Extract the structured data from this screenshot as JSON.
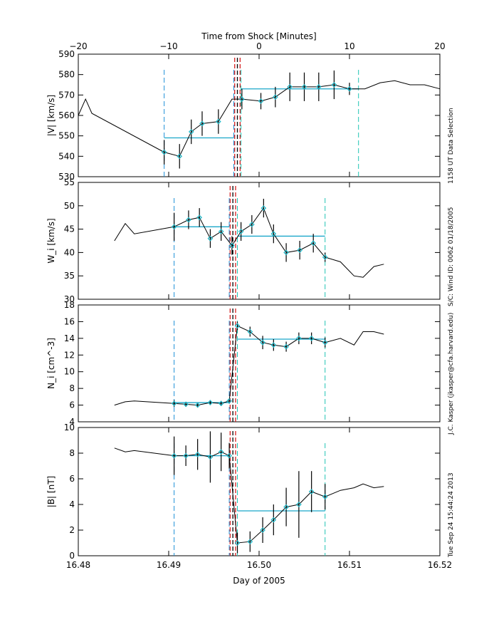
{
  "figure": {
    "top_axis_title": "Time from Shock [Minutes]",
    "bottom_axis_title": "Day of 2005",
    "side_text_1": "1158 UT Data Selection",
    "side_text_2": "S/C: Wind ID: 0062 01/18/2005",
    "side_text_3": "J.C. Kasper (jkasper@cfa.harvard.edu)",
    "side_text_4": "Tue Sep 24 15:44:24 2013"
  },
  "colors": {
    "line": "#000000",
    "points": "#1fb8c8",
    "fit": "#1aa7c9",
    "up_dash": "#1e90d8",
    "down_dash": "#1fc4b4",
    "shock": "#d62020"
  },
  "chart_data": {
    "type": "line",
    "x_axis": {
      "title": "Day of 2005",
      "range": [
        16.48,
        16.52
      ],
      "ticks": [
        16.48,
        16.49,
        16.5,
        16.51,
        16.52
      ],
      "tick_labels": [
        "16.48",
        "16.49",
        "16.50",
        "16.51",
        "16.52"
      ]
    },
    "top_axis": {
      "title": "Time from Shock [Minutes]",
      "range": [
        -20,
        20
      ],
      "ticks": [
        -20,
        -10,
        0,
        10,
        20
      ],
      "tick_labels": [
        "−20",
        "−10",
        "0",
        "10",
        "20"
      ]
    },
    "panels": [
      {
        "name": "speed",
        "ylabel": "|V| [km/s]",
        "ylim": [
          530,
          590
        ],
        "yticks": [
          530,
          540,
          550,
          560,
          570,
          580,
          590
        ],
        "series": {
          "x": [
            16.48,
            16.4808,
            16.4815,
            16.4895,
            16.4912,
            16.4925,
            16.4937,
            16.4955,
            16.497,
            16.4981,
            16.5002,
            16.5018,
            16.5034,
            16.505,
            16.5066,
            16.5083,
            16.51,
            16.5117,
            16.5134,
            16.515,
            16.5167,
            16.5183,
            16.52
          ],
          "y": [
            560,
            568,
            561,
            542,
            540,
            552,
            556,
            557,
            568,
            568,
            567,
            569,
            574,
            574,
            574,
            575,
            573,
            573,
            576,
            577,
            575,
            575,
            573
          ]
        },
        "points": {
          "x": [
            16.4895,
            16.4912,
            16.4925,
            16.4937,
            16.4955,
            16.4981,
            16.5002,
            16.5018,
            16.5034,
            16.505,
            16.5066,
            16.5083,
            16.51
          ],
          "y": [
            542,
            540,
            552,
            556,
            557,
            568,
            567,
            569,
            574,
            574,
            574,
            575,
            573
          ],
          "err": [
            6,
            6,
            6,
            6,
            6,
            5,
            4,
            5,
            7,
            7,
            7,
            7,
            3
          ]
        },
        "fits": [
          {
            "x": [
              16.4895,
              16.4972
            ],
            "y": 549
          },
          {
            "x": [
              16.498,
              16.511
            ],
            "y": 573
          }
        ],
        "upstream_dash": [
          16.4895,
          16.4972
        ],
        "downstream_dash": [
          16.498,
          16.511
        ],
        "shock_lines": [
          16.4973,
          16.4976,
          16.4979
        ]
      },
      {
        "name": "thermal",
        "ylabel": "W_i [km/s]",
        "ylim": [
          30,
          55
        ],
        "yticks": [
          30,
          35,
          40,
          45,
          50,
          55
        ],
        "series": {
          "x": [
            16.484,
            16.4852,
            16.4862,
            16.4906,
            16.4922,
            16.4934,
            16.4946,
            16.4958,
            16.497,
            16.498,
            16.4992,
            16.5005,
            16.5016,
            16.503,
            16.5045,
            16.506,
            16.5073,
            16.509,
            16.5105,
            16.5115,
            16.5127,
            16.5138
          ],
          "y": [
            42.5,
            46.2,
            44.0,
            45.5,
            47.0,
            47.5,
            43.0,
            44.5,
            41.5,
            44.5,
            46.0,
            49.5,
            44.0,
            40.0,
            40.5,
            42.0,
            39.0,
            38.0,
            35.0,
            34.7,
            37.0,
            37.5
          ]
        },
        "points": {
          "x": [
            16.4906,
            16.4922,
            16.4934,
            16.4946,
            16.4958,
            16.497,
            16.498,
            16.4992,
            16.5005,
            16.5016,
            16.503,
            16.5045,
            16.506,
            16.5073
          ],
          "y": [
            45.5,
            47.0,
            47.5,
            43.0,
            44.5,
            41.5,
            44.5,
            46.0,
            49.5,
            44.0,
            40.0,
            40.5,
            42.0,
            39.0
          ],
          "err": [
            3,
            2,
            2,
            2,
            2,
            2,
            2,
            2,
            2,
            2,
            2,
            2,
            2,
            1
          ]
        },
        "fits": [
          {
            "x": [
              16.4906,
              16.4967
            ],
            "y": 45.5
          },
          {
            "x": [
              16.4976,
              16.5073
            ],
            "y": 43.5
          }
        ],
        "upstream_dash": [
          16.4906,
          16.4967
        ],
        "downstream_dash": [
          16.4976,
          16.5073
        ],
        "shock_lines": [
          16.4968,
          16.4971,
          16.4974
        ]
      },
      {
        "name": "density",
        "ylabel": "N_i [cm^-3]",
        "ylim": [
          4,
          18
        ],
        "yticks": [
          4,
          6,
          8,
          10,
          12,
          14,
          16,
          18
        ],
        "series": {
          "x": [
            16.484,
            16.4852,
            16.4862,
            16.4906,
            16.4919,
            16.4932,
            16.4946,
            16.4958,
            16.4967,
            16.4976,
            16.499,
            16.5004,
            16.5016,
            16.503,
            16.5044,
            16.5058,
            16.5073,
            16.509,
            16.5105,
            16.5115,
            16.5127,
            16.5138
          ],
          "y": [
            6.0,
            6.4,
            6.5,
            6.2,
            6.1,
            6.0,
            6.3,
            6.2,
            6.5,
            15.5,
            14.8,
            13.5,
            13.2,
            13.0,
            14.0,
            14.0,
            13.5,
            14.0,
            13.2,
            14.8,
            14.8,
            14.5
          ]
        },
        "points": {
          "x": [
            16.4906,
            16.4919,
            16.4932,
            16.4946,
            16.4958,
            16.4967,
            16.4976,
            16.499,
            16.5004,
            16.5016,
            16.503,
            16.5044,
            16.5058,
            16.5073
          ],
          "y": [
            6.2,
            6.1,
            6.0,
            6.3,
            6.2,
            6.5,
            15.5,
            14.8,
            13.5,
            13.2,
            13.0,
            14.0,
            14.0,
            13.5
          ],
          "err": [
            0.4,
            0.3,
            0.3,
            0.3,
            0.3,
            0.3,
            0.5,
            0.6,
            0.8,
            0.7,
            0.6,
            0.7,
            0.7,
            0.6
          ]
        },
        "fits": [
          {
            "x": [
              16.4906,
              16.4967
            ],
            "y": 6.3
          },
          {
            "x": [
              16.4976,
              16.5073
            ],
            "y": 13.9
          }
        ],
        "upstream_dash": [
          16.4906,
          16.4967
        ],
        "downstream_dash": [
          16.4976,
          16.5073
        ],
        "shock_lines": [
          16.4968,
          16.4971,
          16.4974
        ]
      },
      {
        "name": "field",
        "ylabel": "|B| [nT]",
        "ylim": [
          0,
          10
        ],
        "yticks": [
          0,
          2,
          4,
          6,
          8,
          10
        ],
        "series": {
          "x": [
            16.484,
            16.4852,
            16.4862,
            16.4906,
            16.4919,
            16.4932,
            16.4946,
            16.4958,
            16.4967,
            16.4976,
            16.499,
            16.5004,
            16.5016,
            16.503,
            16.5044,
            16.5058,
            16.5073,
            16.509,
            16.5105,
            16.5115,
            16.5127,
            16.5138
          ],
          "y": [
            8.4,
            8.1,
            8.2,
            7.8,
            7.8,
            7.9,
            7.7,
            8.1,
            7.8,
            1.0,
            1.1,
            2.0,
            2.8,
            3.8,
            4.0,
            5.0,
            4.6,
            5.1,
            5.3,
            5.6,
            5.3,
            5.4
          ]
        },
        "points": {
          "x": [
            16.4906,
            16.4919,
            16.4932,
            16.4946,
            16.4958,
            16.4967,
            16.4976,
            16.499,
            16.5004,
            16.5016,
            16.503,
            16.5044,
            16.5058,
            16.5073
          ],
          "y": [
            7.8,
            7.8,
            7.9,
            7.7,
            8.1,
            7.8,
            1.0,
            1.1,
            2.0,
            2.8,
            3.8,
            4.0,
            5.0,
            4.6
          ],
          "err": [
            1.5,
            0.8,
            1.2,
            2.0,
            1.5,
            1.0,
            0.8,
            0.8,
            1.0,
            1.2,
            1.5,
            2.6,
            1.6,
            1.0
          ]
        },
        "fits": [
          {
            "x": [
              16.4906,
              16.4967
            ],
            "y": 7.8
          },
          {
            "x": [
              16.4976,
              16.5073
            ],
            "y": 3.5
          }
        ],
        "upstream_dash": [
          16.4906,
          16.4967
        ],
        "downstream_dash": [
          16.4976,
          16.5073
        ],
        "shock_lines": [
          16.4968,
          16.4971,
          16.4974
        ]
      }
    ]
  }
}
